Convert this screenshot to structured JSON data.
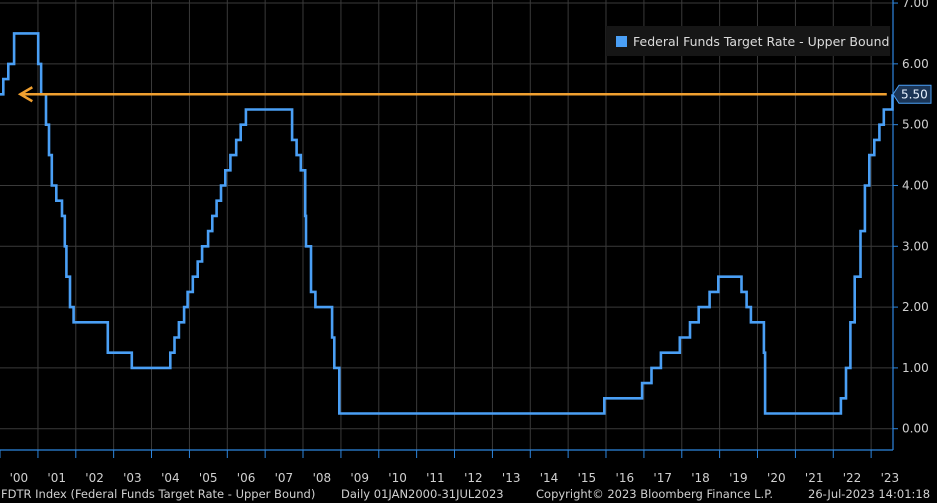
{
  "chart_data": {
    "type": "line",
    "series": [
      {
        "name": "Federal Funds Target Rate - Upper Bound",
        "color": "#4a9ff5",
        "points": [
          [
            "2000-01-01",
            5.5
          ],
          [
            "2000-02-02",
            5.75
          ],
          [
            "2000-03-21",
            6.0
          ],
          [
            "2000-05-16",
            6.5
          ],
          [
            "2001-01-03",
            6.0
          ],
          [
            "2001-01-31",
            5.5
          ],
          [
            "2001-03-20",
            5.0
          ],
          [
            "2001-04-18",
            4.5
          ],
          [
            "2001-05-15",
            4.0
          ],
          [
            "2001-06-27",
            3.75
          ],
          [
            "2001-08-21",
            3.5
          ],
          [
            "2001-09-17",
            3.0
          ],
          [
            "2001-10-02",
            2.5
          ],
          [
            "2001-11-06",
            2.0
          ],
          [
            "2001-12-11",
            1.75
          ],
          [
            "2002-11-06",
            1.25
          ],
          [
            "2003-06-25",
            1.0
          ],
          [
            "2004-06-30",
            1.25
          ],
          [
            "2004-08-10",
            1.5
          ],
          [
            "2004-09-21",
            1.75
          ],
          [
            "2004-11-10",
            2.0
          ],
          [
            "2004-12-14",
            2.25
          ],
          [
            "2005-02-02",
            2.5
          ],
          [
            "2005-03-22",
            2.75
          ],
          [
            "2005-05-03",
            3.0
          ],
          [
            "2005-06-30",
            3.25
          ],
          [
            "2005-08-09",
            3.5
          ],
          [
            "2005-09-20",
            3.75
          ],
          [
            "2005-11-01",
            4.0
          ],
          [
            "2005-12-13",
            4.25
          ],
          [
            "2006-01-31",
            4.5
          ],
          [
            "2006-03-28",
            4.75
          ],
          [
            "2006-05-10",
            5.0
          ],
          [
            "2006-06-29",
            5.25
          ],
          [
            "2007-09-18",
            4.75
          ],
          [
            "2007-10-31",
            4.5
          ],
          [
            "2007-12-11",
            4.25
          ],
          [
            "2008-01-22",
            3.5
          ],
          [
            "2008-01-30",
            3.0
          ],
          [
            "2008-03-18",
            2.25
          ],
          [
            "2008-04-30",
            2.0
          ],
          [
            "2008-10-08",
            1.5
          ],
          [
            "2008-10-29",
            1.0
          ],
          [
            "2008-12-16",
            0.25
          ],
          [
            "2015-12-16",
            0.5
          ],
          [
            "2016-12-14",
            0.75
          ],
          [
            "2017-03-15",
            1.0
          ],
          [
            "2017-06-14",
            1.25
          ],
          [
            "2017-12-13",
            1.5
          ],
          [
            "2018-03-21",
            1.75
          ],
          [
            "2018-06-13",
            2.0
          ],
          [
            "2018-09-26",
            2.25
          ],
          [
            "2018-12-19",
            2.5
          ],
          [
            "2019-07-31",
            2.25
          ],
          [
            "2019-09-18",
            2.0
          ],
          [
            "2019-10-30",
            1.75
          ],
          [
            "2020-03-03",
            1.25
          ],
          [
            "2020-03-15",
            0.25
          ],
          [
            "2022-03-16",
            0.5
          ],
          [
            "2022-05-04",
            1.0
          ],
          [
            "2022-06-15",
            1.75
          ],
          [
            "2022-07-27",
            2.5
          ],
          [
            "2022-09-21",
            3.25
          ],
          [
            "2022-11-02",
            4.0
          ],
          [
            "2022-12-14",
            4.5
          ],
          [
            "2023-02-01",
            4.75
          ],
          [
            "2023-03-22",
            5.0
          ],
          [
            "2023-05-03",
            5.25
          ],
          [
            "2023-07-26",
            5.5
          ]
        ]
      }
    ],
    "x_range": [
      "2000-01-01",
      "2023-07-31"
    ],
    "y_range": [
      -0.35,
      7.05
    ],
    "y_ticks": [
      "0.00",
      "1.00",
      "2.00",
      "3.00",
      "4.00",
      "5.00",
      "6.00",
      "7.00"
    ],
    "x_tick_labels": [
      "'00",
      "'01",
      "'02",
      "'03",
      "'04",
      "'05",
      "'06",
      "'07",
      "'08",
      "'09",
      "'10",
      "'11",
      "'12",
      "'13",
      "'14",
      "'15",
      "'16",
      "'17",
      "'18",
      "'19",
      "'20",
      "'21",
      "'22",
      "'23"
    ],
    "grid": true,
    "legend_position": "top-right",
    "annotations": [
      {
        "type": "arrow",
        "color": "#f0a030",
        "y": 5.5,
        "from": "2023-06-01",
        "to": "2000-07-15"
      }
    ],
    "last_value_label": "5.50",
    "last_value_color": "#4a9ff5",
    "axis_color": "#2e86de",
    "background": "#000000"
  },
  "footer": {
    "ticker": "FDTR Index (Federal Funds Target Rate - Upper Bound)",
    "range": "Daily 01JAN2000-31JUL2023",
    "copyright": "Copyright© 2023 Bloomberg Finance L.P.",
    "timestamp": "26-Jul-2023 14:01:18"
  }
}
